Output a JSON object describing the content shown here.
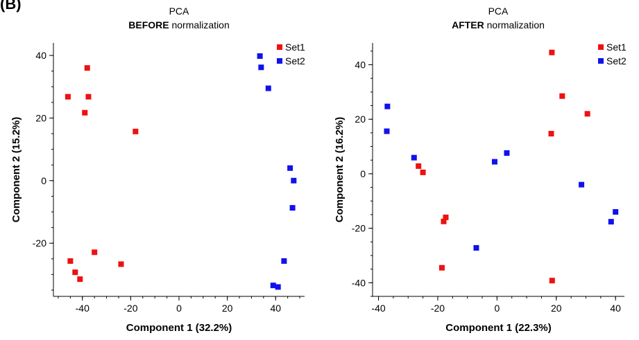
{
  "panel_label": "(B)",
  "legend_colors": {
    "Set1": "#ee1111",
    "Set2": "#1111ee"
  },
  "chart_data": [
    {
      "type": "scatter",
      "title": "PCA",
      "subtitle_bold": "BEFORE",
      "subtitle_rest": " normalization",
      "xlabel": "Component 1 (32.2%)",
      "ylabel": "Component 2 (15.2%)",
      "xlim": [
        -52,
        52
      ],
      "ylim": [
        -37,
        44
      ],
      "xticks": [
        -40,
        -20,
        0,
        20,
        40
      ],
      "yticks": [
        -20,
        0,
        20,
        40
      ],
      "xminor_step": 5,
      "yminor_step": 5,
      "legend_position": "top-right",
      "series": [
        {
          "name": "Set1",
          "color": "#ee1111",
          "points": [
            [
              -46,
              26.8
            ],
            [
              -38,
              36
            ],
            [
              -37.5,
              26.8
            ],
            [
              -39,
              21.7
            ],
            [
              -18,
              15.7
            ],
            [
              -45,
              -25.7
            ],
            [
              -43,
              -29.3
            ],
            [
              -41,
              -31.5
            ],
            [
              -35,
              -22.9
            ],
            [
              -24,
              -26.7
            ]
          ]
        },
        {
          "name": "Set2",
          "color": "#1111ee",
          "points": [
            [
              33.5,
              39.8
            ],
            [
              34,
              36.2
            ],
            [
              37,
              29.5
            ],
            [
              46,
              4
            ],
            [
              47.5,
              0
            ],
            [
              47,
              -8.7
            ],
            [
              43.5,
              -25.7
            ],
            [
              39,
              -33.5
            ],
            [
              41,
              -34
            ]
          ]
        }
      ]
    },
    {
      "type": "scatter",
      "title": "PCA",
      "subtitle_bold": "AFTER",
      "subtitle_rest": " normalization",
      "xlabel": "Component 1 (22.3%)",
      "ylabel": "Component 2 (16.2%)",
      "xlim": [
        -42,
        43
      ],
      "ylim": [
        -45,
        48
      ],
      "xticks": [
        -40,
        -20,
        0,
        20,
        40
      ],
      "yticks": [
        -40,
        -20,
        0,
        20,
        40
      ],
      "xminor_step": 5,
      "yminor_step": 5,
      "legend_position": "top-right",
      "series": [
        {
          "name": "Set1",
          "color": "#ee1111",
          "points": [
            [
              18.5,
              44.5
            ],
            [
              22,
              28.5
            ],
            [
              30.5,
              22
            ],
            [
              18.3,
              14.7
            ],
            [
              -26.5,
              2.8
            ],
            [
              -25,
              0.5
            ],
            [
              -18,
              -17.5
            ],
            [
              -17.3,
              -16
            ],
            [
              -18.6,
              -34.5
            ],
            [
              18.6,
              -39.2
            ]
          ]
        },
        {
          "name": "Set2",
          "color": "#1111ee",
          "points": [
            [
              -37,
              24.7
            ],
            [
              -37.2,
              15.6
            ],
            [
              -28,
              5.9
            ],
            [
              -7,
              -27.2
            ],
            [
              -0.8,
              4.4
            ],
            [
              3.3,
              7.6
            ],
            [
              28.5,
              -4
            ],
            [
              38.5,
              -17.6
            ],
            [
              40,
              -14
            ]
          ]
        }
      ]
    }
  ]
}
